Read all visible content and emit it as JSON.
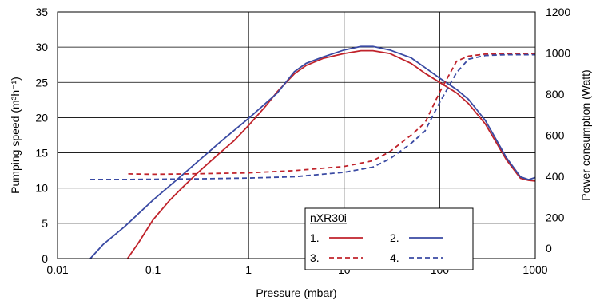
{
  "chart_data": {
    "type": "line",
    "title": "",
    "xlabel": "Pressure (mbar)",
    "ylabel": "Pumping speed (m³h⁻¹)",
    "y2label": "Power consumption (Watt)",
    "xscale": "log",
    "xlim": [
      0.01,
      1000
    ],
    "ylim": [
      0,
      35
    ],
    "y2lim": [
      0,
      1200
    ],
    "xticks": [
      {
        "value": 0.01,
        "label": "0.01"
      },
      {
        "value": 0.1,
        "label": "0.1"
      },
      {
        "value": 1,
        "label": "1"
      },
      {
        "value": 10,
        "label": "10"
      },
      {
        "value": 100,
        "label": "100"
      },
      {
        "value": 1000,
        "label": "1000"
      }
    ],
    "yticks": [
      {
        "value": 0,
        "label": "0"
      },
      {
        "value": 5,
        "label": "5"
      },
      {
        "value": 10,
        "label": "10"
      },
      {
        "value": 15,
        "label": "15"
      },
      {
        "value": 20,
        "label": "20"
      },
      {
        "value": 25,
        "label": "25"
      },
      {
        "value": 30,
        "label": "30"
      },
      {
        "value": 35,
        "label": "35"
      }
    ],
    "y2ticks": [
      {
        "value": 0,
        "label": "0"
      },
      {
        "value": 200,
        "label": "200"
      },
      {
        "value": 400,
        "label": "400"
      },
      {
        "value": 600,
        "label": "600"
      },
      {
        "value": 800,
        "label": "800"
      },
      {
        "value": 1000,
        "label": "1000"
      },
      {
        "value": 1200,
        "label": "1200"
      }
    ],
    "grid": true,
    "legend": {
      "title": "nXR30i",
      "placement": "bottom-right",
      "entries": [
        {
          "label": "1.",
          "series": 0
        },
        {
          "label": "2.",
          "series": 1
        },
        {
          "label": "3.",
          "series": 2
        },
        {
          "label": "4.",
          "series": 3
        }
      ]
    },
    "series": [
      {
        "color": "#c0232b",
        "dash": "solid",
        "axis": "left",
        "x": [
          0.054,
          0.07,
          0.1,
          0.15,
          0.2,
          0.3,
          0.5,
          0.7,
          1.0,
          1.5,
          2.0,
          3.0,
          4.0,
          6.0,
          10,
          15,
          20,
          30,
          50,
          70,
          100,
          150,
          200,
          300,
          500,
          700,
          850,
          1000
        ],
        "y": [
          0,
          2.2,
          5.5,
          8.3,
          10.0,
          12.3,
          15.0,
          16.7,
          18.9,
          21.6,
          23.7,
          26.2,
          27.4,
          28.4,
          29.1,
          29.5,
          29.5,
          29.1,
          27.7,
          26.3,
          25.0,
          23.5,
          22.0,
          19.1,
          14.0,
          11.4,
          11.1,
          11.0
        ]
      },
      {
        "color": "#3a4aa3",
        "dash": "solid",
        "axis": "left",
        "x": [
          0.022,
          0.03,
          0.05,
          0.1,
          0.2,
          0.5,
          1.0,
          2.0,
          3.0,
          4.0,
          6.0,
          10,
          15,
          20,
          30,
          50,
          70,
          100,
          150,
          200,
          300,
          500,
          700,
          850,
          1000
        ],
        "y": [
          0,
          2.0,
          4.5,
          8.3,
          11.8,
          16.5,
          19.9,
          23.5,
          26.5,
          27.7,
          28.6,
          29.6,
          30.1,
          30.1,
          29.6,
          28.5,
          27.1,
          25.6,
          24.0,
          22.6,
          19.6,
          14.3,
          11.6,
          11.2,
          11.5
        ]
      },
      {
        "color": "#c0232b",
        "dash": "dashed",
        "axis": "right",
        "x": [
          0.055,
          0.1,
          0.3,
          1,
          3,
          10,
          20,
          30,
          50,
          70,
          100,
          150,
          200,
          300,
          500,
          1000
        ],
        "y": [
          412,
          410,
          413,
          417,
          428,
          448,
          476,
          520,
          600,
          660,
          810,
          960,
          985,
          995,
          997,
          997
        ]
      },
      {
        "color": "#3a4aa3",
        "dash": "dashed",
        "axis": "right",
        "x": [
          0.022,
          0.05,
          0.1,
          0.3,
          1,
          3,
          10,
          20,
          30,
          50,
          70,
          100,
          150,
          200,
          300,
          500,
          1000
        ],
        "y": [
          385,
          385,
          386,
          388,
          392,
          398,
          420,
          445,
          485,
          560,
          620,
          760,
          905,
          970,
          988,
          992,
          992
        ]
      }
    ]
  }
}
